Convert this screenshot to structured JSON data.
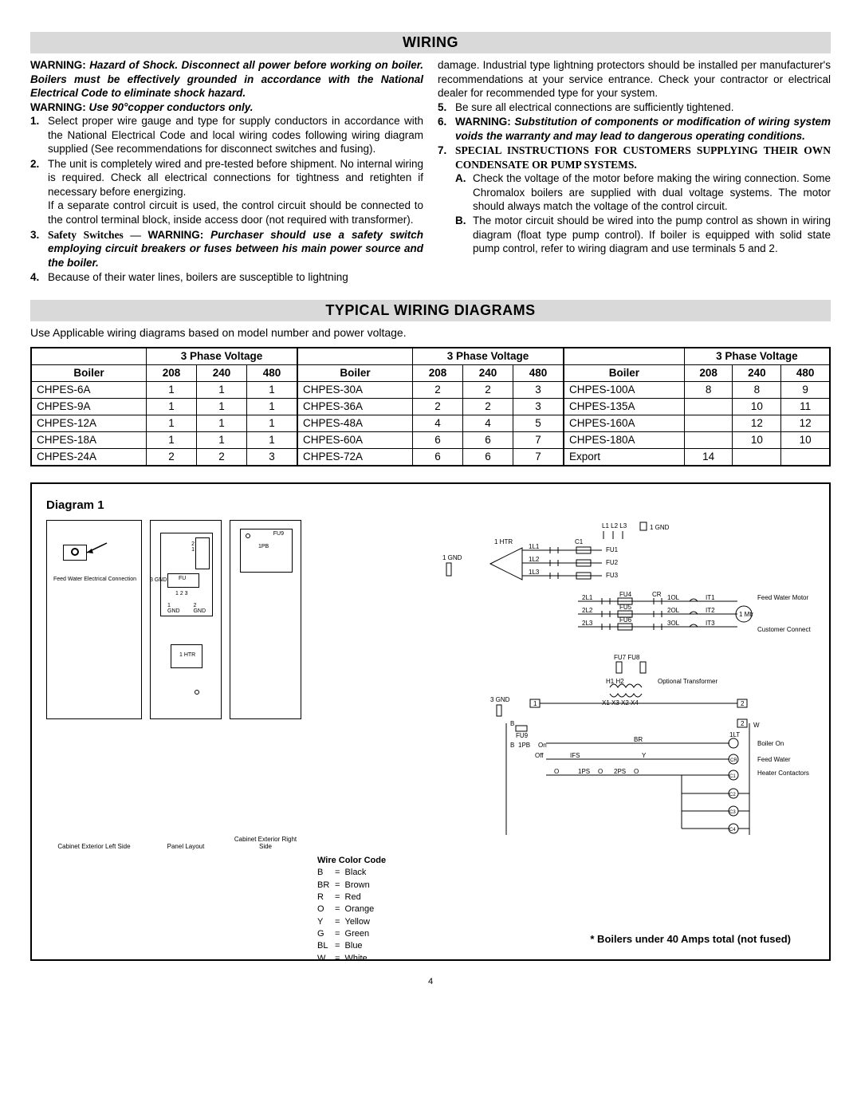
{
  "headers": {
    "wiring": "WIRING",
    "diagrams": "TYPICAL WIRING DIAGRAMS"
  },
  "warning_block": {
    "w1_head": "WARNING: ",
    "w1_text": "Hazard of Shock. Disconnect all power before working on boiler. Boilers must be effectively grounded in accordance with the National Electrical Code to eliminate shock hazard.",
    "w2_head": "WARNING: ",
    "w2_text": "Use 90°copper conductors only."
  },
  "left_items": [
    {
      "n": "1.",
      "t": "Select proper wire gauge and type for supply conductors in accordance with the National Electrical Code and local wiring codes following wiring diagram supplied (See recommendations for disconnect switches and fusing)."
    },
    {
      "n": "2.",
      "t": "The unit is completely wired and pre-tested before shipment. No internal wiring is required. Check all electrical connections for tightness and retighten if necessary before energizing.",
      "t2": "If a separate control circuit is used, the control circuit should be connected to the control terminal block, inside access door (not required with transformer)."
    },
    {
      "n": "3.",
      "pre": "Safety Switches — ",
      "whead": "WARNING: ",
      "wtext": "Purchaser should use a safety switch employing circuit breakers or fuses between his main power source and the boiler."
    },
    {
      "n": "4.",
      "t": "Because of their water lines, boilers are susceptible to lightning"
    }
  ],
  "right_cont": "damage. Industrial type lightning protectors should be installed per manufacturer's recommendations at your service entrance. Check your contractor or electrical dealer for recommended type for your system.",
  "right_items": [
    {
      "n": "5.",
      "t": "Be sure all electrical connections are sufficiently tightened."
    },
    {
      "n": "6.",
      "whead": "WARNING: ",
      "wtext": "Substitution of components or modification of wiring system voids the warranty and may lead to dangerous operating conditions."
    },
    {
      "n": "7.",
      "bold": "SPECIAL INSTRUCTIONS FOR CUSTOMERS SUPPLYING THEIR OWN CONDENSATE OR PUMP SYSTEMS."
    }
  ],
  "sub_items": [
    {
      "n": "A.",
      "t": "Check the voltage of the motor before making the wiring connection. Some Chromalox boilers are supplied with dual voltage systems. The motor should always match the voltage of the control circuit."
    },
    {
      "n": "B.",
      "t": "The motor circuit should be wired into the pump control as shown in wiring diagram (float type pump control). If boiler is equipped with solid state pump control, refer to wiring diagram and use terminals 5 and 2."
    }
  ],
  "intro": "Use Applicable wiring diagrams based on model number and power voltage.",
  "table": {
    "phase_header": "3 Phase Voltage",
    "boiler_header": "Boiler",
    "cols": [
      "208",
      "240",
      "480"
    ],
    "groups": [
      {
        "rows": [
          [
            "CHPES-6A",
            "1",
            "1",
            "1"
          ],
          [
            "CHPES-9A",
            "1",
            "1",
            "1"
          ],
          [
            "CHPES-12A",
            "1",
            "1",
            "1"
          ],
          [
            "CHPES-18A",
            "1",
            "1",
            "1"
          ],
          [
            "CHPES-24A",
            "2",
            "2",
            "3"
          ]
        ]
      },
      {
        "rows": [
          [
            "CHPES-30A",
            "2",
            "2",
            "3"
          ],
          [
            "CHPES-36A",
            "2",
            "2",
            "3"
          ],
          [
            "CHPES-48A",
            "4",
            "4",
            "5"
          ],
          [
            "CHPES-60A",
            "6",
            "6",
            "7"
          ],
          [
            "CHPES-72A",
            "6",
            "6",
            "7"
          ]
        ]
      },
      {
        "rows": [
          [
            "CHPES-100A",
            "8",
            "8",
            "9"
          ],
          [
            "CHPES-135A",
            "",
            "10",
            "11"
          ],
          [
            "CHPES-160A",
            "",
            "12",
            "12"
          ],
          [
            "CHPES-180A",
            "",
            "10",
            "10"
          ],
          [
            "Export",
            "14",
            "",
            ""
          ]
        ]
      }
    ]
  },
  "diagram": {
    "title": "Diagram 1",
    "labels": {
      "cab_left": "Cabinet Exterior Left Side",
      "panel": "Panel Layout",
      "cab_right": "Cabinet Exterior Right Side",
      "feedwater": "Feed Water Electrical Connection",
      "fu9": "FU9",
      "1pb": "1PB",
      "htr": "1 HTR",
      "gnd12": "GND",
      "fu": "FU",
      "nums": "1 2 3",
      "gnd3": "3 GND"
    },
    "schematic": {
      "l123": "L1 L2 L3",
      "gnd1": "1 GND",
      "htr1": "1 HTR",
      "g1": "1 GND",
      "lines": [
        "1L1",
        "1L2",
        "1L3"
      ],
      "c1": "C1",
      "fus": [
        "FU1",
        "FU2",
        "FU3"
      ],
      "lines2": [
        "2L1",
        "2L2",
        "2L3"
      ],
      "fus2": [
        "FU4",
        "FU5",
        "FU6"
      ],
      "cr": "CR",
      "ol": [
        "1OL",
        "2OL",
        "3OL"
      ],
      "it": [
        "IT1",
        "IT2",
        "IT3"
      ],
      "mtr": "1 Mtr",
      "fwm": "Feed Water Motor",
      "cust": "Customer Connect",
      "fu78": "FU7    FU8",
      "h12": "H1    H2",
      "opt": "Optional Transformer",
      "x": "X1  X3  X2  X4",
      "gnd3": "3 GND",
      "boxes": [
        "1",
        "2",
        "2"
      ],
      "fu9": "FU9",
      "b": "B",
      "1pb": "1PB",
      "on": "On",
      "off": "Off",
      "br": "BR",
      "1lt": "1LT",
      "bo": "Boiler On",
      "ifs": "IFS",
      "y": "Y",
      "cr2": "CR",
      "fw": "Feed Water",
      "o": "O",
      "1ps": "1PS",
      "2ps": "2PS",
      "c": [
        "C1",
        "C2",
        "C3",
        "C4"
      ],
      "hc": "Heater Contactors",
      "w": "W"
    },
    "color_code_title": "Wire Color Code",
    "colors": [
      [
        "B",
        "Black"
      ],
      [
        "BR",
        "Brown"
      ],
      [
        "R",
        "Red"
      ],
      [
        "O",
        "Orange"
      ],
      [
        "Y",
        "Yellow"
      ],
      [
        "G",
        "Green"
      ],
      [
        "BL",
        "Blue"
      ],
      [
        "W",
        "White"
      ]
    ],
    "fuse_note": "* Boilers under 40 Amps total (not fused)"
  },
  "page_num": "4"
}
